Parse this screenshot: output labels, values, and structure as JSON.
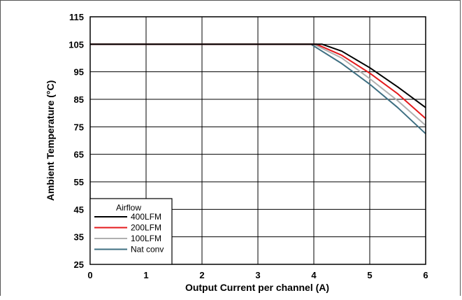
{
  "chart_data": {
    "type": "line",
    "xlabel": "Output Current per channel (A)",
    "ylabel": "Ambient Temperature (°C)",
    "xlim": [
      0,
      6
    ],
    "ylim": [
      25,
      115
    ],
    "xticks": [
      "0",
      "1",
      "2",
      "3",
      "4",
      "5",
      "6"
    ],
    "yticks": [
      "25",
      "35",
      "45",
      "55",
      "65",
      "75",
      "85",
      "95",
      "105",
      "115"
    ],
    "grid": true,
    "legend": {
      "title": "Airflow",
      "placement": "bottom-left"
    },
    "series": [
      {
        "name": "400LFM",
        "color": "#000000",
        "x": [
          0,
          4.15,
          4.5,
          5.0,
          5.5,
          6.0
        ],
        "y": [
          105,
          105,
          102.5,
          96.5,
          89.5,
          82
        ]
      },
      {
        "name": "200LFM",
        "color": "#e41a1c",
        "x": [
          0,
          4.05,
          4.5,
          5.0,
          5.5,
          6.0
        ],
        "y": [
          105,
          105,
          101,
          94.5,
          87,
          78
        ]
      },
      {
        "name": "100LFM",
        "color": "#b0b0b0",
        "x": [
          0,
          4.0,
          4.5,
          5.0,
          5.5,
          6.0
        ],
        "y": [
          105,
          105,
          100,
          92.5,
          84.5,
          75.5
        ]
      },
      {
        "name": "Nat conv",
        "color": "#3e6f82",
        "x": [
          0,
          3.95,
          4.5,
          5.0,
          5.5,
          6.0
        ],
        "y": [
          105,
          105,
          98,
          90.5,
          82,
          72.5
        ]
      }
    ]
  }
}
